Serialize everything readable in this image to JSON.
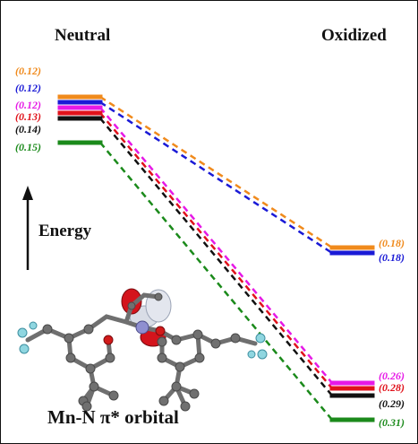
{
  "headers": {
    "left": "Neutral",
    "right": "Oxidized"
  },
  "axis": {
    "energy_label": "Energy"
  },
  "caption": "Mn-N π* orbital",
  "levels": {
    "neutral": [
      {
        "label": "(0.12)",
        "color": "#f08a1c"
      },
      {
        "label": "(0.12)",
        "color": "#1a1ad6"
      },
      {
        "label": "(0.12)",
        "color": "#e619e6"
      },
      {
        "label": "(0.13)",
        "color": "#e0121b"
      },
      {
        "label": "(0.14)",
        "color": "#111111"
      },
      {
        "label": "(0.15)",
        "color": "#1b8a1b"
      }
    ],
    "oxidized": [
      {
        "label": "(0.18)",
        "color": "#f08a1c"
      },
      {
        "label": "(0.18)",
        "color": "#1a1ad6"
      },
      {
        "label": "(0.26)",
        "color": "#e619e6"
      },
      {
        "label": "(0.28)",
        "color": "#e0121b"
      },
      {
        "label": "(0.29)",
        "color": "#111111"
      },
      {
        "label": "(0.31)",
        "color": "#1b8a1b"
      }
    ]
  }
}
